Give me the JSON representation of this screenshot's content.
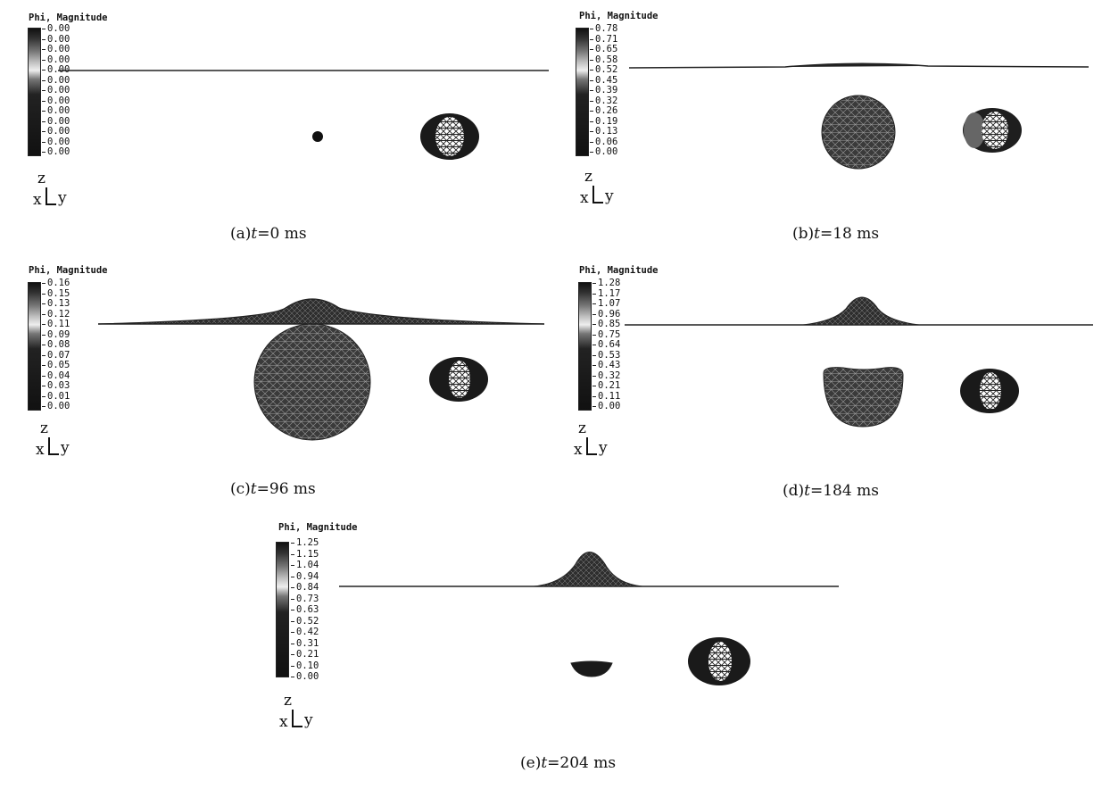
{
  "legend_title": "Phi, Magnitude",
  "axes": {
    "z": "z",
    "x": "x",
    "y": "y"
  },
  "panels": [
    {
      "id": "a",
      "caption_prefix": "(a)",
      "caption_var": "t",
      "caption_value": "=0 ms",
      "ticks": [
        "0.00",
        "0.00",
        "0.00",
        "0.00",
        "0.00",
        "0.00",
        "0.00",
        "0.00",
        "0.00",
        "0.00",
        "0.00",
        "0.00",
        "0.00"
      ]
    },
    {
      "id": "b",
      "caption_prefix": "(b)",
      "caption_var": "t",
      "caption_value": "=18 ms",
      "ticks": [
        "0.78",
        "0.71",
        "0.65",
        "0.58",
        "0.52",
        "0.45",
        "0.39",
        "0.32",
        "0.26",
        "0.19",
        "0.13",
        "0.06",
        "0.00"
      ]
    },
    {
      "id": "c",
      "caption_prefix": "(c)",
      "caption_var": "t",
      "caption_value": "=96 ms",
      "ticks": [
        "0.16",
        "0.15",
        "0.13",
        "0.12",
        "0.11",
        "0.09",
        "0.08",
        "0.07",
        "0.05",
        "0.04",
        "0.03",
        "0.01",
        "0.00"
      ]
    },
    {
      "id": "d",
      "caption_prefix": "(d)",
      "caption_var": "t",
      "caption_value": "=184 ms",
      "ticks": [
        "1.28",
        "1.17",
        "1.07",
        "0.96",
        "0.85",
        "0.75",
        "0.64",
        "0.53",
        "0.43",
        "0.32",
        "0.21",
        "0.11",
        "0.00"
      ]
    },
    {
      "id": "e",
      "caption_prefix": "(e)",
      "caption_var": "t",
      "caption_value": "=204 ms",
      "ticks": [
        "1.25",
        "1.15",
        "1.04",
        "0.94",
        "0.84",
        "0.73",
        "0.63",
        "0.52",
        "0.42",
        "0.31",
        "0.21",
        "0.10",
        "0.00"
      ]
    }
  ]
}
